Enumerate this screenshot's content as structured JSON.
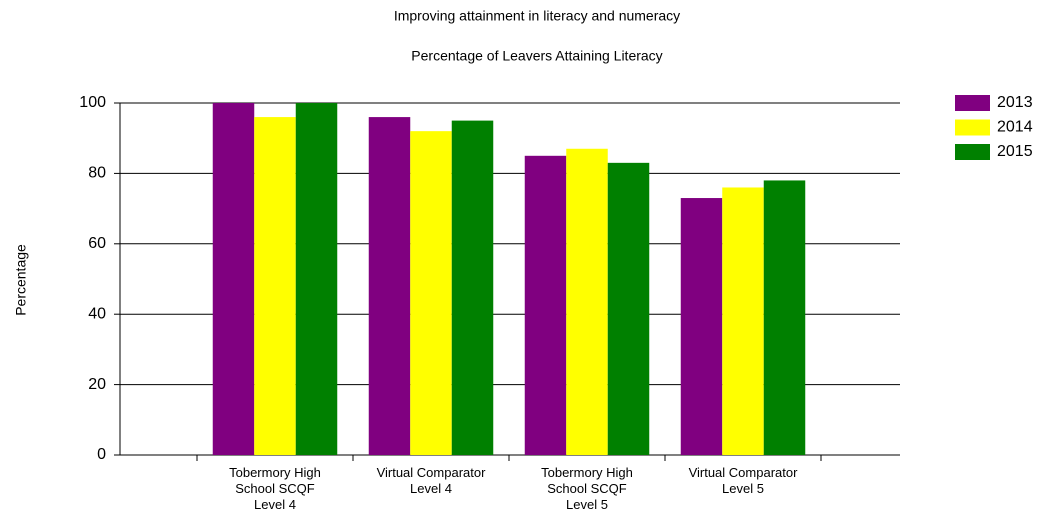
{
  "chart_data": {
    "type": "bar",
    "title": "Improving attainment in literacy and numeracy",
    "subtitle": "Percentage of Leavers Attaining Literacy",
    "y_label": "Percentage",
    "categories": [
      "Tobermory High\nSchool SCQF\nLevel 4",
      "Virtual Comparator\nLevel 4",
      "Tobermory High\nSchool SCQF\nLevel 5",
      "Virtual Comparator\nLevel 5"
    ],
    "series": [
      {
        "name": "2013",
        "color": "#800080",
        "values": [
          100,
          96,
          85,
          73
        ]
      },
      {
        "name": "2014",
        "color": "#ffff00",
        "values": [
          96,
          92,
          87,
          76
        ]
      },
      {
        "name": "2015",
        "color": "#008000",
        "values": [
          100,
          95,
          83,
          78
        ]
      }
    ],
    "ylim": [
      0,
      100
    ],
    "yticks": [
      0,
      20,
      40,
      60,
      80,
      100
    ],
    "grid": true,
    "legend": "right"
  }
}
